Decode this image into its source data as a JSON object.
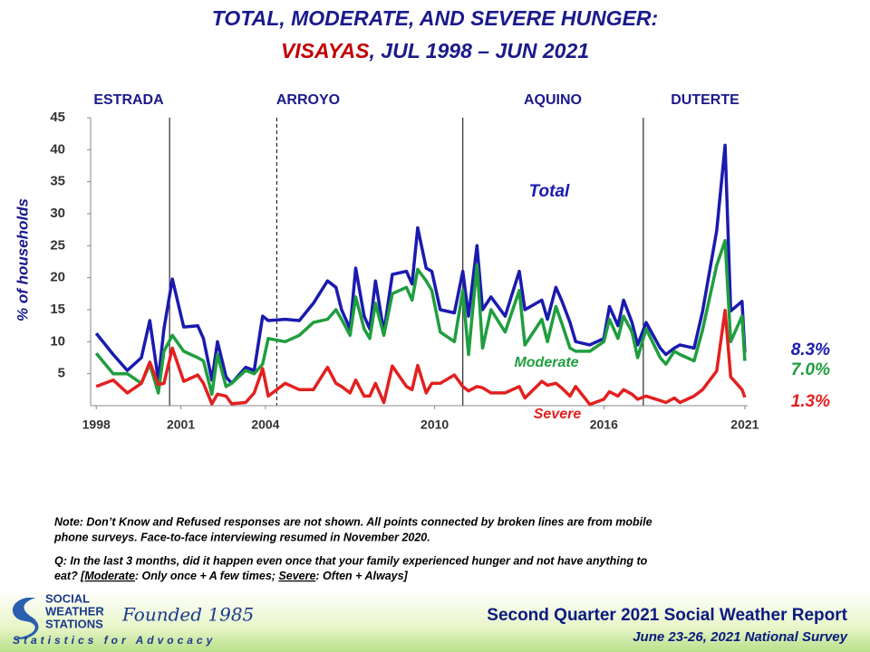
{
  "chart_data": {
    "type": "line",
    "title_line1": "TOTAL, MODERATE, AND SEVERE HUNGER:",
    "title_region": "VISAYAS",
    "title_period": ", JUL 1998 – JUN 2021",
    "y_label": "% of households",
    "xlim": [
      1997.8,
      2021.1
    ],
    "xticks": [
      1998,
      2001,
      2004,
      2010,
      2016,
      2021
    ],
    "ylim": [
      0,
      45
    ],
    "yticks": [
      5,
      10,
      15,
      20,
      25,
      30,
      35,
      40,
      45
    ],
    "presidents": [
      "ESTRADA",
      "ARROYO",
      "AQUINO",
      "DUTERTE"
    ],
    "dividers": [
      2000.6,
      2004.4,
      2011.0,
      2017.4
    ],
    "divider_styles": [
      "solid",
      "dashed",
      "solid",
      "solid"
    ],
    "x": [
      1998.0,
      1998.6,
      1999.1,
      1999.6,
      1999.9,
      2000.2,
      2000.4,
      2000.7,
      2001.1,
      2001.6,
      2001.8,
      2002.1,
      2002.3,
      2002.6,
      2002.8,
      2003.3,
      2003.6,
      2003.9,
      2004.1,
      2004.7,
      2005.2,
      2005.7,
      2006.2,
      2006.5,
      2006.7,
      2007.0,
      2007.2,
      2007.5,
      2007.7,
      2007.9,
      2008.2,
      2008.5,
      2009.0,
      2009.2,
      2009.4,
      2009.7,
      2009.9,
      2010.2,
      2010.7,
      2011.0,
      2011.2,
      2011.5,
      2011.7,
      2012.0,
      2012.5,
      2013.0,
      2013.2,
      2013.8,
      2014.0,
      2014.3,
      2014.5,
      2014.8,
      2015.0,
      2015.5,
      2016.0,
      2016.2,
      2016.5,
      2016.7,
      2017.0,
      2017.2,
      2017.5,
      2018.0,
      2018.2,
      2018.5,
      2018.7,
      2019.2,
      2019.5,
      2020.0,
      2020.3,
      2020.5,
      2020.9,
      2021.0
    ],
    "series": [
      {
        "name": "Total",
        "color": "#1a1ab0",
        "end_label": "8.3%",
        "values": [
          11.3,
          8.0,
          5.5,
          7.5,
          13.3,
          4.0,
          12.0,
          19.8,
          12.3,
          12.5,
          10.5,
          4.0,
          10.0,
          4.5,
          3.5,
          6.0,
          5.5,
          14.0,
          13.3,
          13.5,
          13.3,
          16.0,
          19.5,
          18.5,
          15.0,
          12.0,
          21.5,
          14.0,
          12.0,
          19.5,
          11.5,
          20.5,
          21.0,
          19.0,
          27.8,
          21.5,
          21.0,
          15.0,
          14.5,
          21.0,
          14.0,
          25.0,
          15.0,
          17.0,
          14.0,
          21.0,
          15.0,
          16.5,
          13.5,
          18.5,
          16.5,
          13.0,
          10.0,
          9.5,
          10.5,
          15.5,
          12.5,
          16.5,
          13.0,
          9.5,
          13.0,
          9.0,
          8.0,
          9.0,
          9.5,
          9.0,
          14.7,
          27.3,
          40.7,
          14.8,
          16.3,
          8.3
        ]
      },
      {
        "name": "Moderate",
        "color": "#1f9e3e",
        "end_label": "7.0%",
        "values": [
          8.2,
          5.0,
          5.0,
          3.5,
          6.5,
          2.0,
          8.5,
          11.0,
          8.5,
          7.5,
          7.0,
          1.8,
          8.0,
          3.0,
          3.5,
          5.5,
          5.0,
          6.5,
          10.5,
          10.0,
          11.0,
          13.0,
          13.5,
          15.0,
          13.5,
          11.0,
          17.0,
          12.0,
          10.5,
          16.0,
          11.0,
          17.5,
          18.5,
          16.5,
          21.3,
          19.5,
          18.0,
          11.5,
          10.0,
          18.0,
          8.0,
          22.0,
          9.0,
          15.0,
          11.5,
          18.0,
          9.5,
          13.5,
          10.0,
          15.5,
          13.0,
          9.0,
          8.5,
          8.5,
          10.0,
          13.5,
          10.5,
          14.0,
          11.5,
          7.5,
          12.0,
          7.5,
          6.5,
          8.5,
          8.0,
          7.0,
          11.8,
          21.9,
          25.8,
          10.0,
          14.0,
          7.0
        ]
      },
      {
        "name": "Severe",
        "color": "#e32020",
        "end_label": "1.3%",
        "values": [
          3.0,
          4.0,
          2.0,
          3.5,
          6.8,
          3.3,
          3.5,
          9.0,
          3.8,
          4.8,
          3.5,
          0.3,
          1.8,
          1.5,
          0.3,
          0.5,
          2.0,
          5.8,
          1.5,
          3.5,
          2.5,
          2.5,
          6.0,
          3.5,
          3.0,
          2.0,
          4.0,
          1.5,
          1.5,
          3.5,
          0.5,
          6.2,
          3.0,
          2.5,
          6.3,
          2.0,
          3.5,
          3.5,
          4.8,
          3.0,
          2.3,
          3.0,
          2.8,
          2.0,
          2.0,
          3.0,
          1.2,
          3.8,
          3.2,
          3.5,
          2.8,
          1.5,
          3.0,
          0.2,
          1.0,
          2.2,
          1.5,
          2.5,
          1.8,
          1.0,
          1.5,
          0.8,
          0.5,
          1.2,
          0.5,
          1.5,
          2.5,
          5.4,
          14.9,
          4.5,
          2.5,
          1.3
        ]
      }
    ]
  },
  "notes": {
    "note_lines": [
      "Note: Don’t Know and Refused responses are not shown. All points connected by broken lines are from mobile",
      "phone surveys. Face-to-face interviewing resumed in November 2020."
    ],
    "question_line1": "Q: In the last 3 months, did it happen even once that your family experienced hunger and not have anything to",
    "question_line2": [
      "eat? [",
      "Moderate",
      ": Only once + A few times; ",
      "Severe",
      ": Often + Always]"
    ]
  },
  "footer": {
    "logo_lines": [
      "SOCIAL",
      "WEATHER",
      "STATIONS"
    ],
    "founded": "Founded 1985",
    "tagline": "Statistics for Advocacy",
    "report": "Second Quarter 2021 Social Weather Report",
    "survey": "June 23-26, 2021 National Survey"
  }
}
